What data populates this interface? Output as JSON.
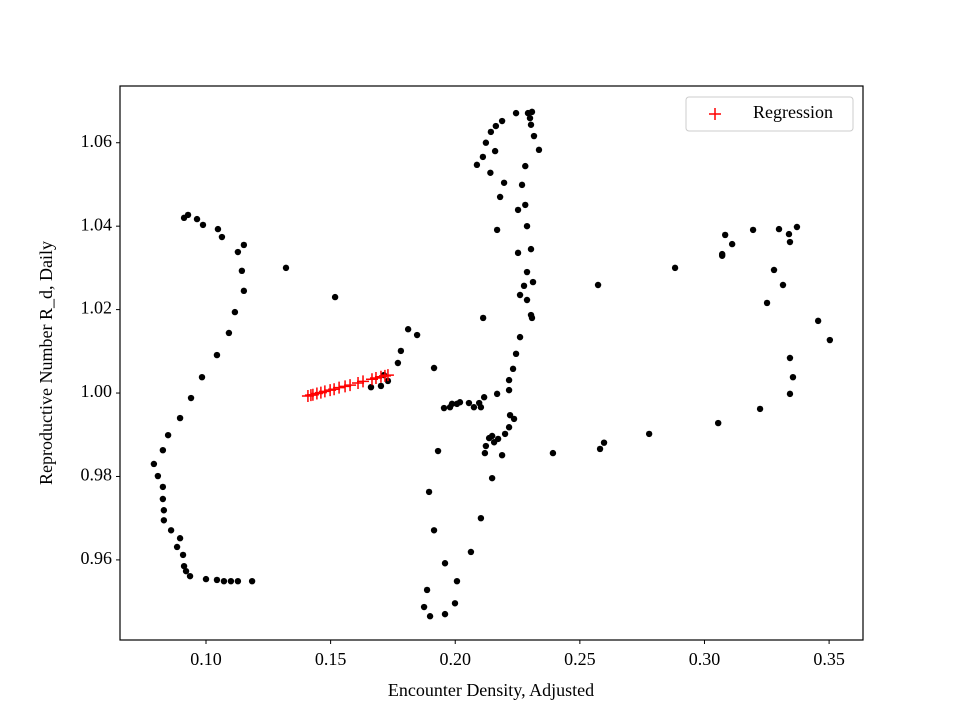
{
  "chart_data": {
    "type": "scatter",
    "xlabel": "Encounter Density, Adjusted",
    "ylabel": "Reproductive Number R_d, Daily",
    "xlim": [
      0.0655,
      0.3636
    ],
    "ylim": [
      0.9408,
      1.0736
    ],
    "xticks": [
      {
        "value": 0.1,
        "label": "0.10"
      },
      0.15,
      {
        "value": 0.2,
        "label": "0.20"
      },
      0.25,
      {
        "value": 0.3,
        "label": "0.30"
      },
      0.35
    ],
    "yticks": [
      0.96,
      0.98,
      {
        "value": 1.0,
        "label": "1.00"
      },
      1.02,
      1.04,
      1.06
    ],
    "legend": "upper right",
    "series": [
      {
        "color": "#000000",
        "marker": "o",
        "x": [
          0.0912,
          0.0928,
          0.0964,
          0.0988,
          0.1048,
          0.1064,
          0.1152,
          0.1128,
          0.1144,
          0.1152,
          0.1116,
          0.1092,
          0.1044,
          0.0984,
          0.094,
          0.0896,
          0.0848,
          0.0827,
          0.0791,
          0.0807,
          0.0827,
          0.0827,
          0.0831,
          0.0831,
          0.086,
          0.0896,
          0.0884,
          0.0908,
          0.0912,
          0.092,
          0.0936,
          0.1,
          0.1044,
          0.1072,
          0.11,
          0.1128,
          0.1185,
          0.1321,
          0.1518,
          0.1811,
          0.1847,
          0.1782,
          0.177,
          0.173,
          0.1702,
          0.1662,
          0.1714,
          0.1915,
          0.2087,
          0.2111,
          0.2123,
          0.2143,
          0.2163,
          0.2188,
          0.2244,
          0.2292,
          0.2308,
          0.23,
          0.2304,
          0.2316,
          0.2336,
          0.216,
          0.2141,
          0.2281,
          0.2196,
          0.2268,
          0.218,
          0.2281,
          0.2252,
          0.2168,
          0.2288,
          0.2304,
          0.2252,
          0.2288,
          0.2312,
          0.2276,
          0.226,
          0.2288,
          0.2304,
          0.2308,
          0.2112,
          0.226,
          0.2244,
          0.2232,
          0.2216,
          0.2216,
          0.2168,
          0.2116,
          0.2096,
          0.2075,
          0.2103,
          0.2055,
          0.2019,
          0.2007,
          0.1987,
          0.1979,
          0.1955,
          0.222,
          0.2236,
          0.2216,
          0.22,
          0.2148,
          0.2172,
          0.2136,
          0.2156,
          0.2123,
          0.2119,
          0.2188,
          0.1931,
          0.2148,
          0.1895,
          0.2103,
          0.1915,
          0.2063,
          0.1959,
          0.2007,
          0.1887,
          0.1875,
          0.1999,
          0.1899,
          0.1959,
          0.2392,
          0.2581,
          0.2597,
          0.2573,
          0.2778,
          0.2882,
          0.3055,
          0.3071,
          0.3071,
          0.3083,
          0.3111,
          0.3195,
          0.3223,
          0.3251,
          0.3279,
          0.3299,
          0.3315,
          0.3339,
          0.3343,
          0.3371,
          0.3343,
          0.3355,
          0.3343,
          0.3456,
          0.3503
        ],
        "values": [
          1.042,
          1.0427,
          1.0417,
          1.0403,
          1.0393,
          1.0374,
          1.0355,
          1.0338,
          1.0293,
          1.0245,
          1.0194,
          1.0144,
          1.0091,
          1.0038,
          0.9988,
          0.994,
          0.9899,
          0.9863,
          0.983,
          0.9801,
          0.9775,
          0.9746,
          0.9719,
          0.9695,
          0.9671,
          0.9652,
          0.9631,
          0.9612,
          0.9585,
          0.9573,
          0.9561,
          0.9554,
          0.9552,
          0.9549,
          0.9549,
          0.9549,
          0.9549,
          1.03,
          1.023,
          1.0153,
          1.0139,
          1.0101,
          1.0072,
          1.0029,
          1.0017,
          1.0014,
          1.0043,
          1.006,
          1.0547,
          1.0566,
          1.06,
          1.0626,
          1.064,
          1.0652,
          1.0671,
          1.0671,
          1.0674,
          1.0659,
          1.0643,
          1.0616,
          1.0583,
          1.058,
          1.0528,
          1.0544,
          1.0504,
          1.0499,
          1.047,
          1.0451,
          1.0439,
          1.0391,
          1.04,
          1.0345,
          1.0336,
          1.029,
          1.0266,
          1.0257,
          1.0235,
          1.0223,
          1.0187,
          1.018,
          1.018,
          1.0134,
          1.0094,
          1.0058,
          1.0031,
          1.0007,
          0.9998,
          0.999,
          0.9976,
          0.9966,
          0.9966,
          0.9976,
          0.9978,
          0.9974,
          0.9974,
          0.9966,
          0.9964,
          0.9947,
          0.9938,
          0.9918,
          0.9902,
          0.9897,
          0.989,
          0.9892,
          0.9882,
          0.9873,
          0.9856,
          0.9851,
          0.9861,
          0.9796,
          0.9763,
          0.97,
          0.9671,
          0.9619,
          0.9592,
          0.9549,
          0.9528,
          0.9487,
          0.9496,
          0.9465,
          0.947,
          0.9856,
          0.9866,
          0.9881,
          1.0259,
          0.9902,
          1.03,
          0.9928,
          1.0333,
          1.0329,
          1.0379,
          1.0357,
          1.0391,
          0.9962,
          1.0216,
          1.0295,
          1.0393,
          1.0259,
          1.0381,
          1.0362,
          1.0398,
          1.0084,
          1.0038,
          0.9998,
          1.0173,
          1.0127
        ]
      },
      {
        "name": "Regression",
        "color": "#ff0000",
        "marker": "+",
        "x": [
          0.1409,
          0.1421,
          0.1429,
          0.1445,
          0.1461,
          0.1477,
          0.1498,
          0.1514,
          0.1534,
          0.1558,
          0.1578,
          0.161,
          0.163,
          0.1666,
          0.1682,
          0.1702,
          0.1718,
          0.173
        ],
        "values": [
          0.9993,
          0.9995,
          0.9996,
          0.9999,
          1.0001,
          1.0004,
          1.0007,
          1.0009,
          1.0013,
          1.0016,
          1.0019,
          1.0024,
          1.0028,
          1.0033,
          1.0036,
          1.0039,
          1.0041,
          1.0043
        ]
      }
    ]
  }
}
